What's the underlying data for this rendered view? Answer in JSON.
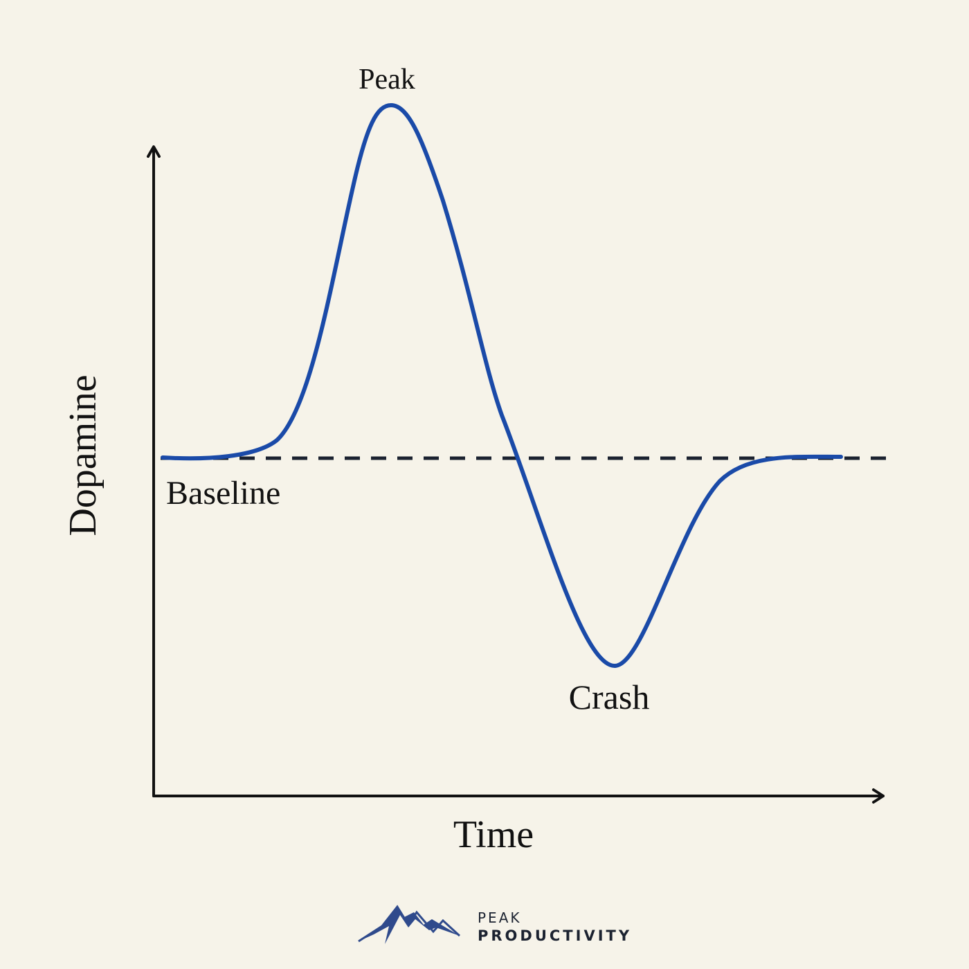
{
  "labels": {
    "peak": "Peak",
    "baseline": "Baseline",
    "crash": "Crash"
  },
  "axes": {
    "y_label": "Dopamine",
    "x_label": "Time"
  },
  "logo": {
    "line1": "PEAK",
    "line2": "PRODUCTIVITY"
  }
}
